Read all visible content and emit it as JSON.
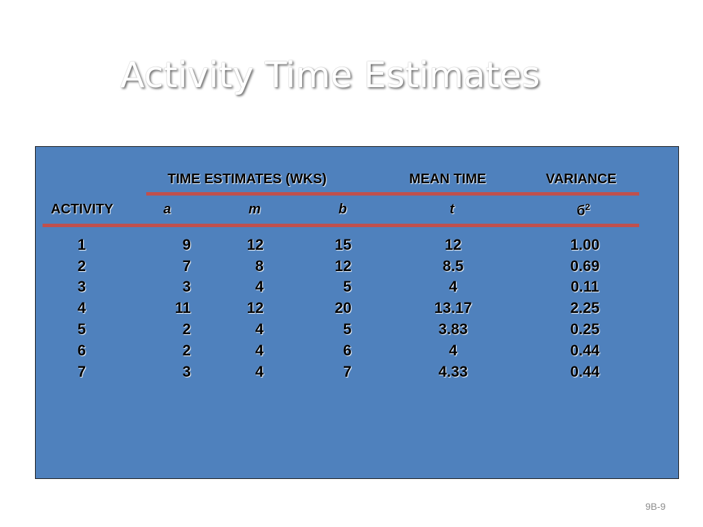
{
  "title": "Activity Time Estimates",
  "table": {
    "header_time_estimates": "TIME ESTIMATES (WKS)",
    "header_mean_time": "MEAN TIME",
    "header_variance": "VARIANCE",
    "sub_activity": "ACTIVITY",
    "sub_a": "a",
    "sub_m": "m",
    "sub_b": "b",
    "sub_t": "t",
    "sub_variance_symbol": "б",
    "sub_variance_exp": "2",
    "rows": [
      {
        "activity": "1",
        "a": "9",
        "m": "12",
        "b": "15",
        "t": "12",
        "variance": "1.00"
      },
      {
        "activity": "2",
        "a": "7",
        "m": "8",
        "b": "12",
        "t": "8.5",
        "variance": "0.69"
      },
      {
        "activity": "3",
        "a": "3",
        "m": "4",
        "b": "5",
        "t": "4",
        "variance": "0.11"
      },
      {
        "activity": "4",
        "a": "11",
        "m": "12",
        "b": "20",
        "t": "13.17",
        "variance": "2.25"
      },
      {
        "activity": "5",
        "a": "2",
        "m": "4",
        "b": "5",
        "t": "3.83",
        "variance": "0.25"
      },
      {
        "activity": "6",
        "a": "2",
        "m": "4",
        "b": "6",
        "t": "4",
        "variance": "0.44"
      },
      {
        "activity": "7",
        "a": "3",
        "m": "4",
        "b": "7",
        "t": "4.33",
        "variance": "0.44"
      }
    ]
  },
  "page_number": "9B-9",
  "colors": {
    "panel": "#4f81bd",
    "rule": "#c0504d",
    "title": "#ffffff"
  }
}
